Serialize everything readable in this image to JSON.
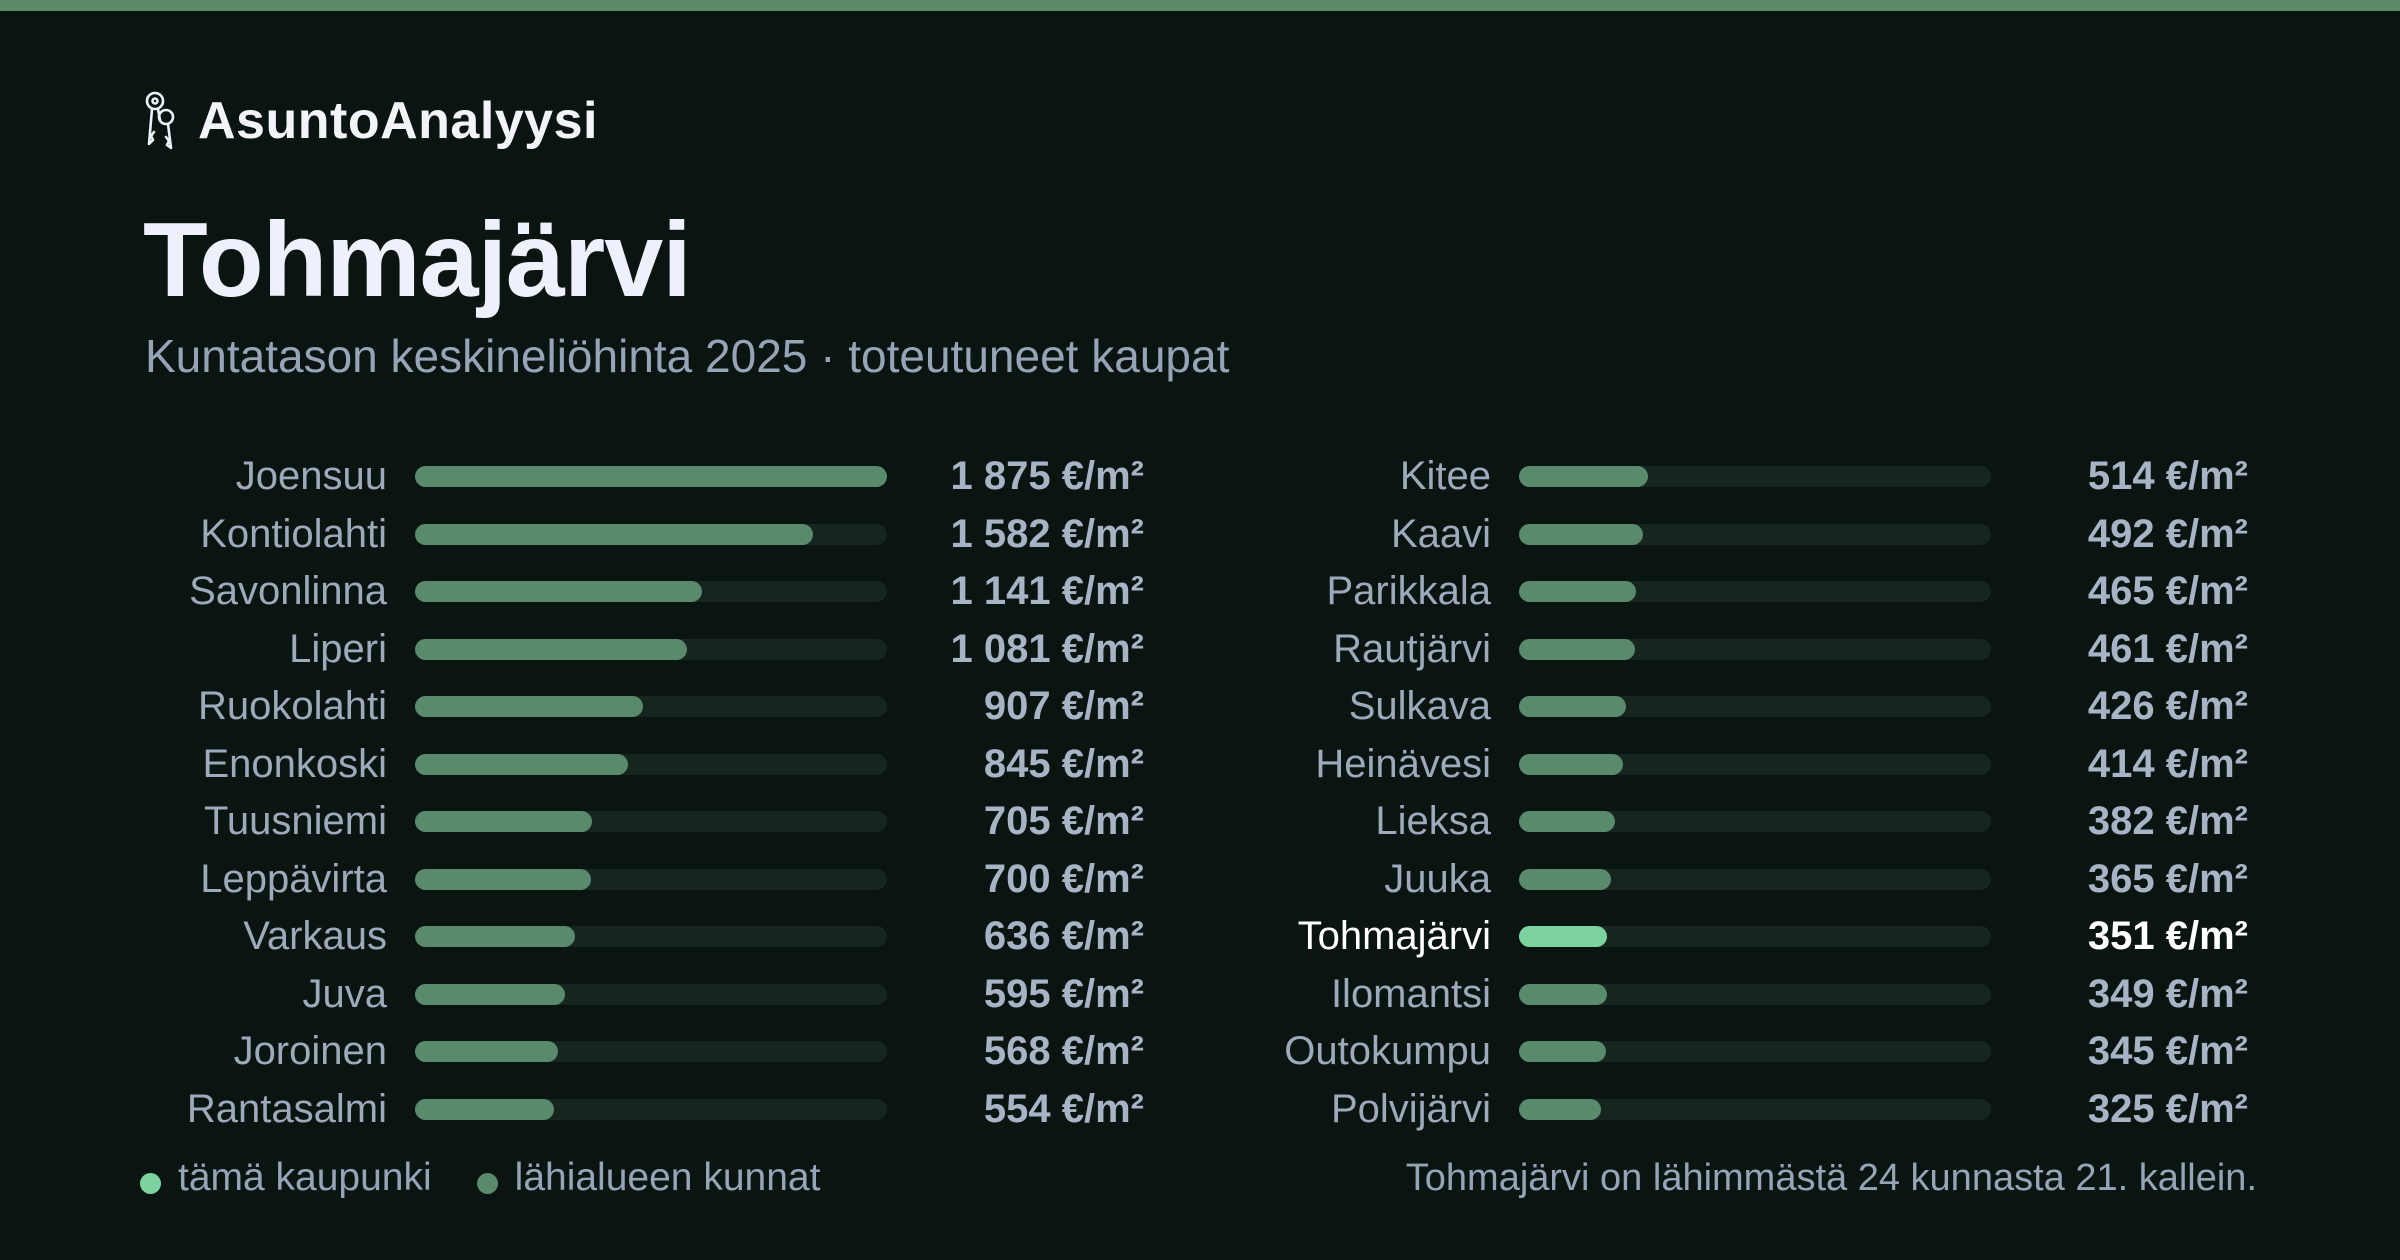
{
  "brand": {
    "name": "AsuntoAnalyysi",
    "icon": "keys-icon"
  },
  "header": {
    "title": "Tohmajärvi",
    "subtitle": "Kuntatason keskineliöhinta 2025 · toteutuneet kaupat"
  },
  "colors": {
    "accent": "#7dd3a0",
    "bar": "#5a8a6c",
    "track": "#17251f",
    "background": "#0a1411",
    "topbar": "#5a8a66"
  },
  "chart_data": {
    "type": "bar",
    "orientation": "horizontal",
    "unit": "€/m²",
    "highlight": "Tohmajärvi",
    "xlim": [
      0,
      1875
    ],
    "categories": [
      "Joensuu",
      "Kontiolahti",
      "Savonlinna",
      "Liperi",
      "Ruokolahti",
      "Enonkoski",
      "Tuusniemi",
      "Leppävirta",
      "Varkaus",
      "Juva",
      "Joroinen",
      "Rantasalmi",
      "Kitee",
      "Kaavi",
      "Parikkala",
      "Rautjärvi",
      "Sulkava",
      "Heinävesi",
      "Lieksa",
      "Juuka",
      "Tohmajärvi",
      "Ilomantsi",
      "Outokumpu",
      "Polvijärvi"
    ],
    "values": [
      1875,
      1582,
      1141,
      1081,
      907,
      845,
      705,
      700,
      636,
      595,
      568,
      554,
      514,
      492,
      465,
      461,
      426,
      414,
      382,
      365,
      351,
      349,
      345,
      325
    ],
    "value_labels": [
      "1 875 €/m²",
      "1 582 €/m²",
      "1 141 €/m²",
      "1 081 €/m²",
      "907 €/m²",
      "845 €/m²",
      "705 €/m²",
      "700 €/m²",
      "636 €/m²",
      "595 €/m²",
      "568 €/m²",
      "554 €/m²",
      "514 €/m²",
      "492 €/m²",
      "465 €/m²",
      "461 €/m²",
      "426 €/m²",
      "414 €/m²",
      "382 €/m²",
      "365 €/m²",
      "351 €/m²",
      "349 €/m²",
      "345 €/m²",
      "325 €/m²"
    ]
  },
  "legend": {
    "this_city": "tämä kaupunki",
    "nearby": "lähialueen kunnat"
  },
  "footnote": "Tohmajärvi on lähimmästä 24 kunnasta 21. kallein."
}
